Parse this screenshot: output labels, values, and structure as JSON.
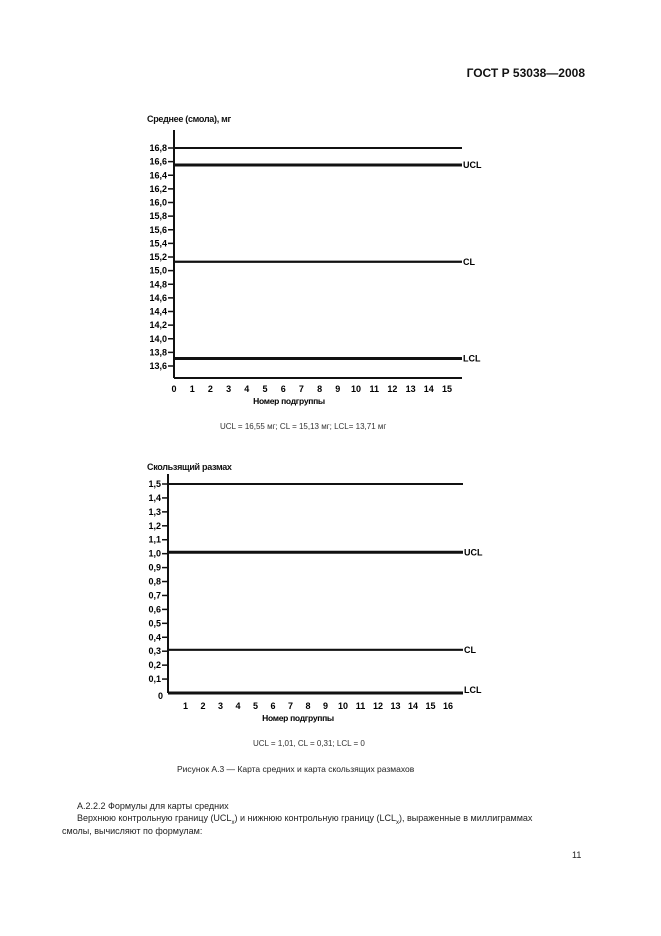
{
  "header": {
    "standard": "ГОСТ Р 53038—2008"
  },
  "chart_data": [
    {
      "type": "line",
      "title": "Среднее (смола), мг",
      "xlabel": "Номер подгруппы",
      "ylabel": "",
      "x_ticks": [
        "0",
        "1",
        "2",
        "3",
        "4",
        "5",
        "6",
        "7",
        "8",
        "9",
        "10",
        "11",
        "12",
        "13",
        "14",
        "15"
      ],
      "y_ticks": [
        "16,8",
        "16,6",
        "16,4",
        "16,2",
        "16,0",
        "15,8",
        "15,6",
        "15,4",
        "15,2",
        "15,0",
        "14,8",
        "14,6",
        "14,4",
        "14,2",
        "14,0",
        "13,8",
        "13,6"
      ],
      "ylim": [
        13.6,
        16.8
      ],
      "xlim": [
        0,
        15
      ],
      "lines": [
        {
          "label": "",
          "value": 16.8
        },
        {
          "label": "UCL",
          "value": 16.55
        },
        {
          "label": "CL",
          "value": 15.13
        },
        {
          "label": "LCL",
          "value": 13.71
        }
      ],
      "caption": "UCL = 16,55 мг; CL = 15,13 мг; LCL= 13,71 мг"
    },
    {
      "type": "line",
      "title": "Скользящий размах",
      "xlabel": "Номер подгруппы",
      "ylabel": "",
      "x_ticks": [
        "1",
        "2",
        "3",
        "4",
        "5",
        "6",
        "7",
        "8",
        "9",
        "10",
        "11",
        "12",
        "13",
        "14",
        "15",
        "16"
      ],
      "y_ticks": [
        "1,5",
        "1,4",
        "1,3",
        "1,2",
        "1,1",
        "1,0",
        "0,9",
        "0,8",
        "0,7",
        "0,6",
        "0,5",
        "0,4",
        "0,3",
        "0,2",
        "0,1",
        "0"
      ],
      "ylim": [
        0,
        1.5
      ],
      "xlim": [
        0,
        16
      ],
      "lines": [
        {
          "label": "",
          "value": 1.5
        },
        {
          "label": "UCL",
          "value": 1.01
        },
        {
          "label": "CL",
          "value": 0.31
        },
        {
          "label": "LCL",
          "value": 0
        }
      ],
      "caption": "UCL = 1,01, CL = 0,31; LCL = 0"
    }
  ],
  "figure_caption": "Рисунок А.3 — Карта средних и карта скользящих размахов",
  "body": {
    "section": "А.2.2.2  Формулы для карты средних",
    "para_1": "Верхнюю контрольную границу (UCL",
    "para_sub": "x",
    "para_2": ") и нижнюю контрольную границу (LCL",
    "para_3": "), выраженные в миллиграммах",
    "para_4": "смолы, вычисляют по формулам:"
  },
  "footer": {
    "page_number": "11"
  }
}
